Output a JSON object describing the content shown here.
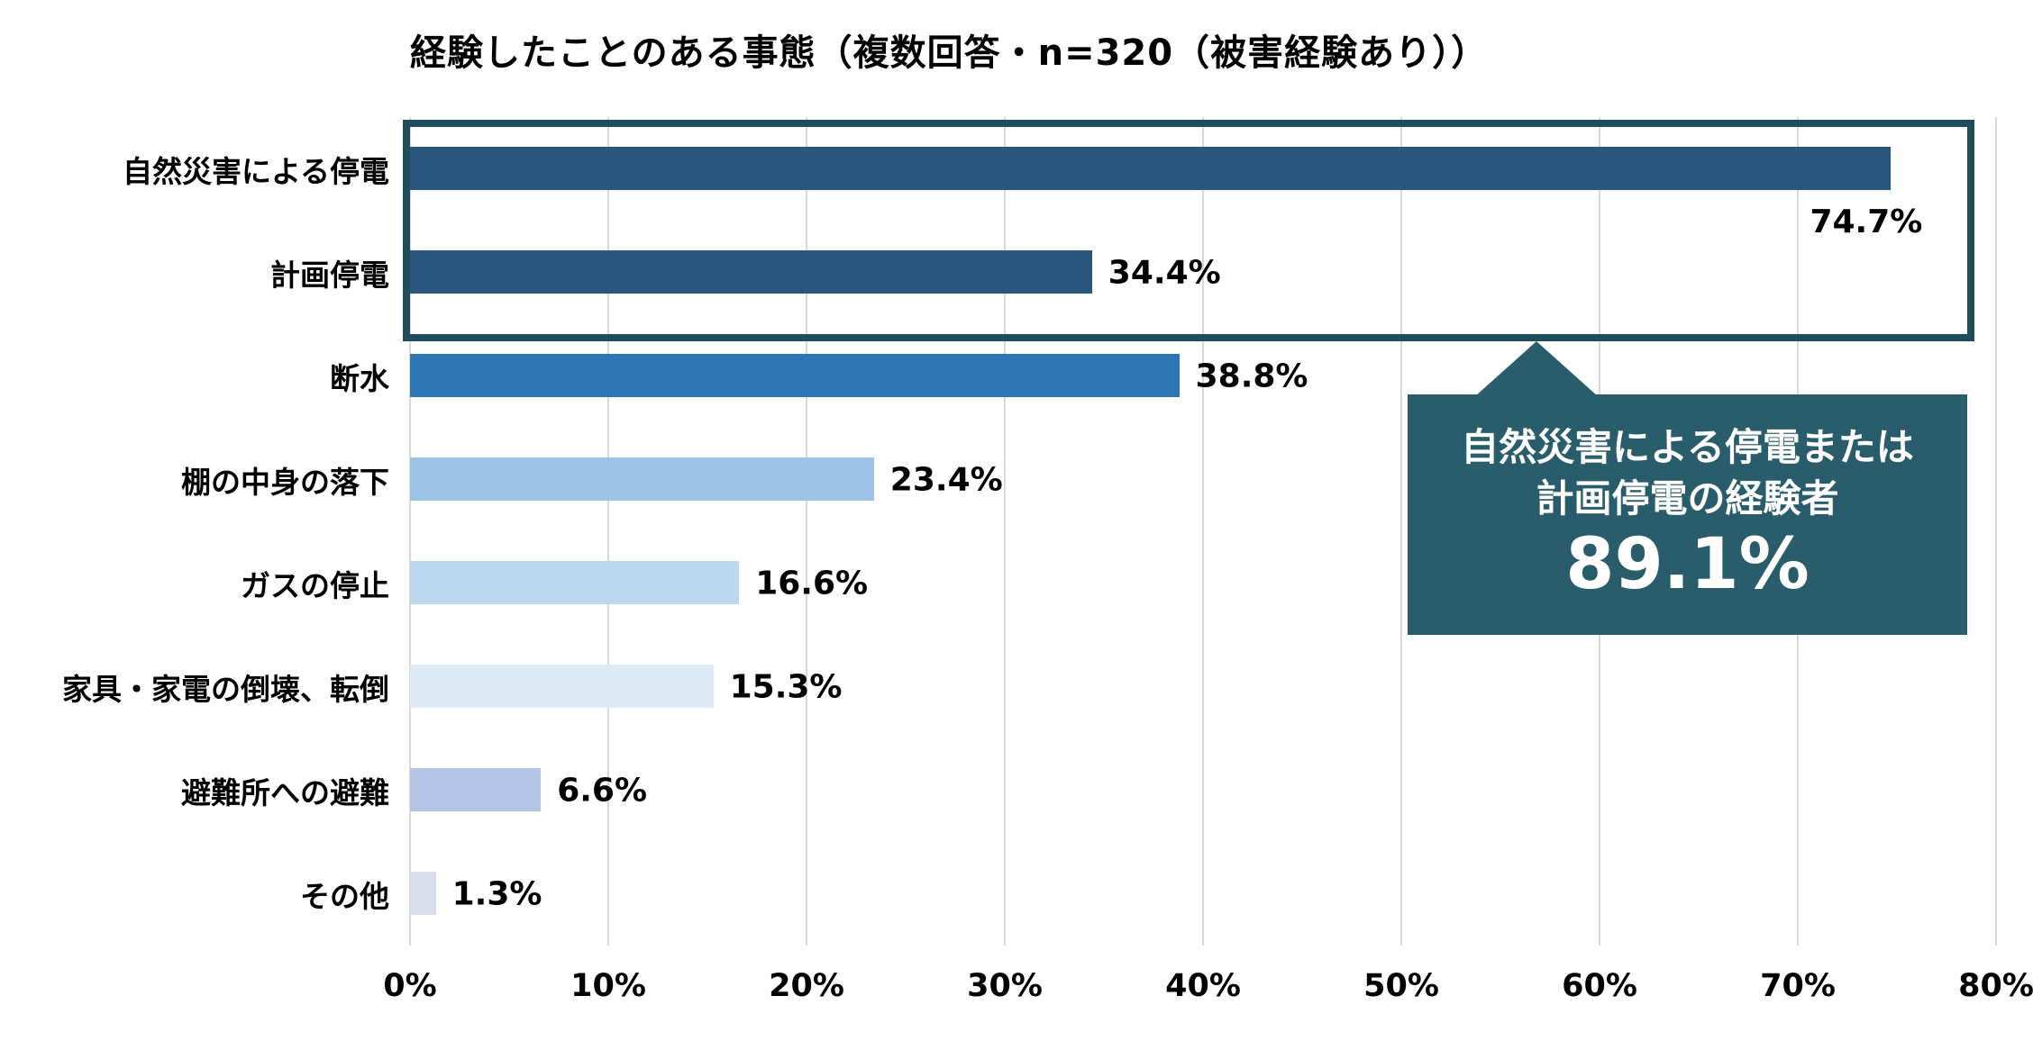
{
  "title": "経験したことのある事態（複数回答・n=320（被害経験あり））",
  "chart_data": {
    "type": "bar",
    "orientation": "horizontal",
    "title": "経験したことのある事態（複数回答・n=320（被害経験あり））",
    "xlim": [
      0,
      80
    ],
    "x_ticks": [
      "0%",
      "10%",
      "20%",
      "30%",
      "40%",
      "50%",
      "60%",
      "70%",
      "80%"
    ],
    "grid": true,
    "gridline_color": "#d9d9d9",
    "categories": [
      "自然災害による停電",
      "計画停電",
      "断水",
      "棚の中身の落下",
      "ガスの停止",
      "家具・家電の倒壊、転倒",
      "避難所への避難",
      "その他"
    ],
    "values": [
      74.7,
      34.4,
      38.8,
      23.4,
      16.6,
      15.3,
      6.6,
      1.3
    ],
    "bars": [
      {
        "label": "自然災害による停電",
        "value": 74.7,
        "value_label": "74.7%",
        "color": "#2a567e",
        "value_label_below": true
      },
      {
        "label": "計画停電",
        "value": 34.4,
        "value_label": "34.4%",
        "color": "#2a567e",
        "value_label_below": false
      },
      {
        "label": "断水",
        "value": 38.8,
        "value_label": "38.8%",
        "color": "#2e75b6",
        "value_label_below": false
      },
      {
        "label": "棚の中身の落下",
        "value": 23.4,
        "value_label": "23.4%",
        "color": "#9dc3e6",
        "value_label_below": false
      },
      {
        "label": "ガスの停止",
        "value": 16.6,
        "value_label": "16.6%",
        "color": "#bdd7ee",
        "value_label_below": false
      },
      {
        "label": "家具・家電の倒壊、転倒",
        "value": 15.3,
        "value_label": "15.3%",
        "color": "#deeaf6",
        "value_label_below": false
      },
      {
        "label": "避難所への避難",
        "value": 6.6,
        "value_label": "6.6%",
        "color": "#b4c7e7",
        "value_label_below": false
      },
      {
        "label": "その他",
        "value": 1.3,
        "value_label": "1.3%",
        "color": "#d8deec",
        "value_label_below": false
      }
    ],
    "highlight_box": {
      "covers_categories": [
        "自然災害による停電",
        "計画停電"
      ],
      "border_color": "#1f4d5a"
    },
    "callout": {
      "line1": "自然災害による停電または",
      "line2": "計画停電の経験者",
      "value": "89.1%",
      "bg_color": "#2a5d6b",
      "text_color": "#ffffff"
    }
  }
}
